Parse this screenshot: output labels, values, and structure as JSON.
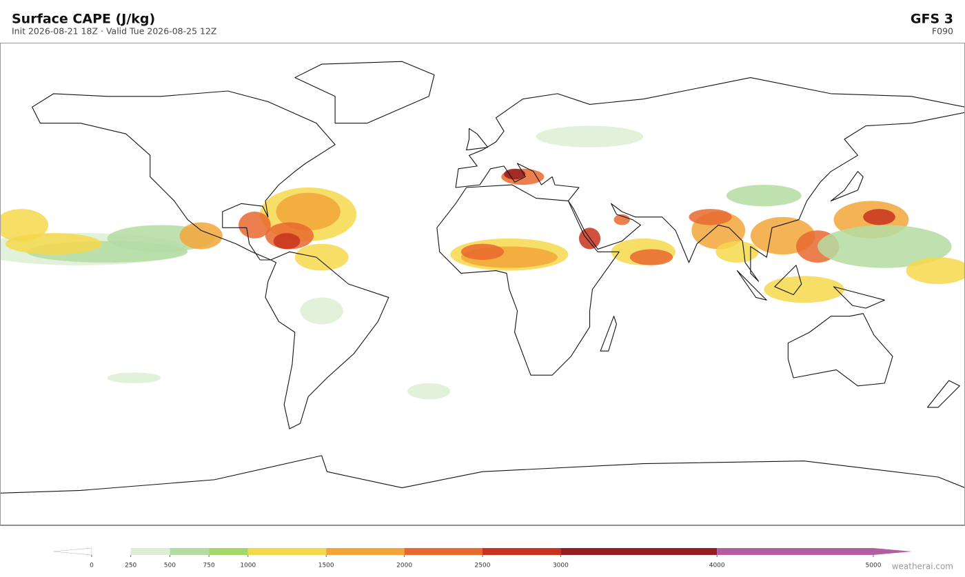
{
  "header": {
    "title": "Surface CAPE  (J/kg)",
    "subtitle": "Init 2026-08-21 18Z  ·  Valid Tue 2026-08-25 12Z",
    "model": "GFS  3",
    "forecast_hour": "F090"
  },
  "colorbar": {
    "levels": [
      0,
      250,
      500,
      750,
      1000,
      1500,
      2000,
      2500,
      3000,
      4000,
      5000
    ],
    "colors": [
      "#ffffff",
      "#dcefd4",
      "#b4dca2",
      "#a5d86c",
      "#f4d84c",
      "#f2a63a",
      "#e8692e",
      "#c8331f",
      "#951c1f",
      "#b35ca2"
    ],
    "under_color": "#ffffff",
    "over_color": "#b35ca2"
  },
  "watermark": "weatherai.com"
}
